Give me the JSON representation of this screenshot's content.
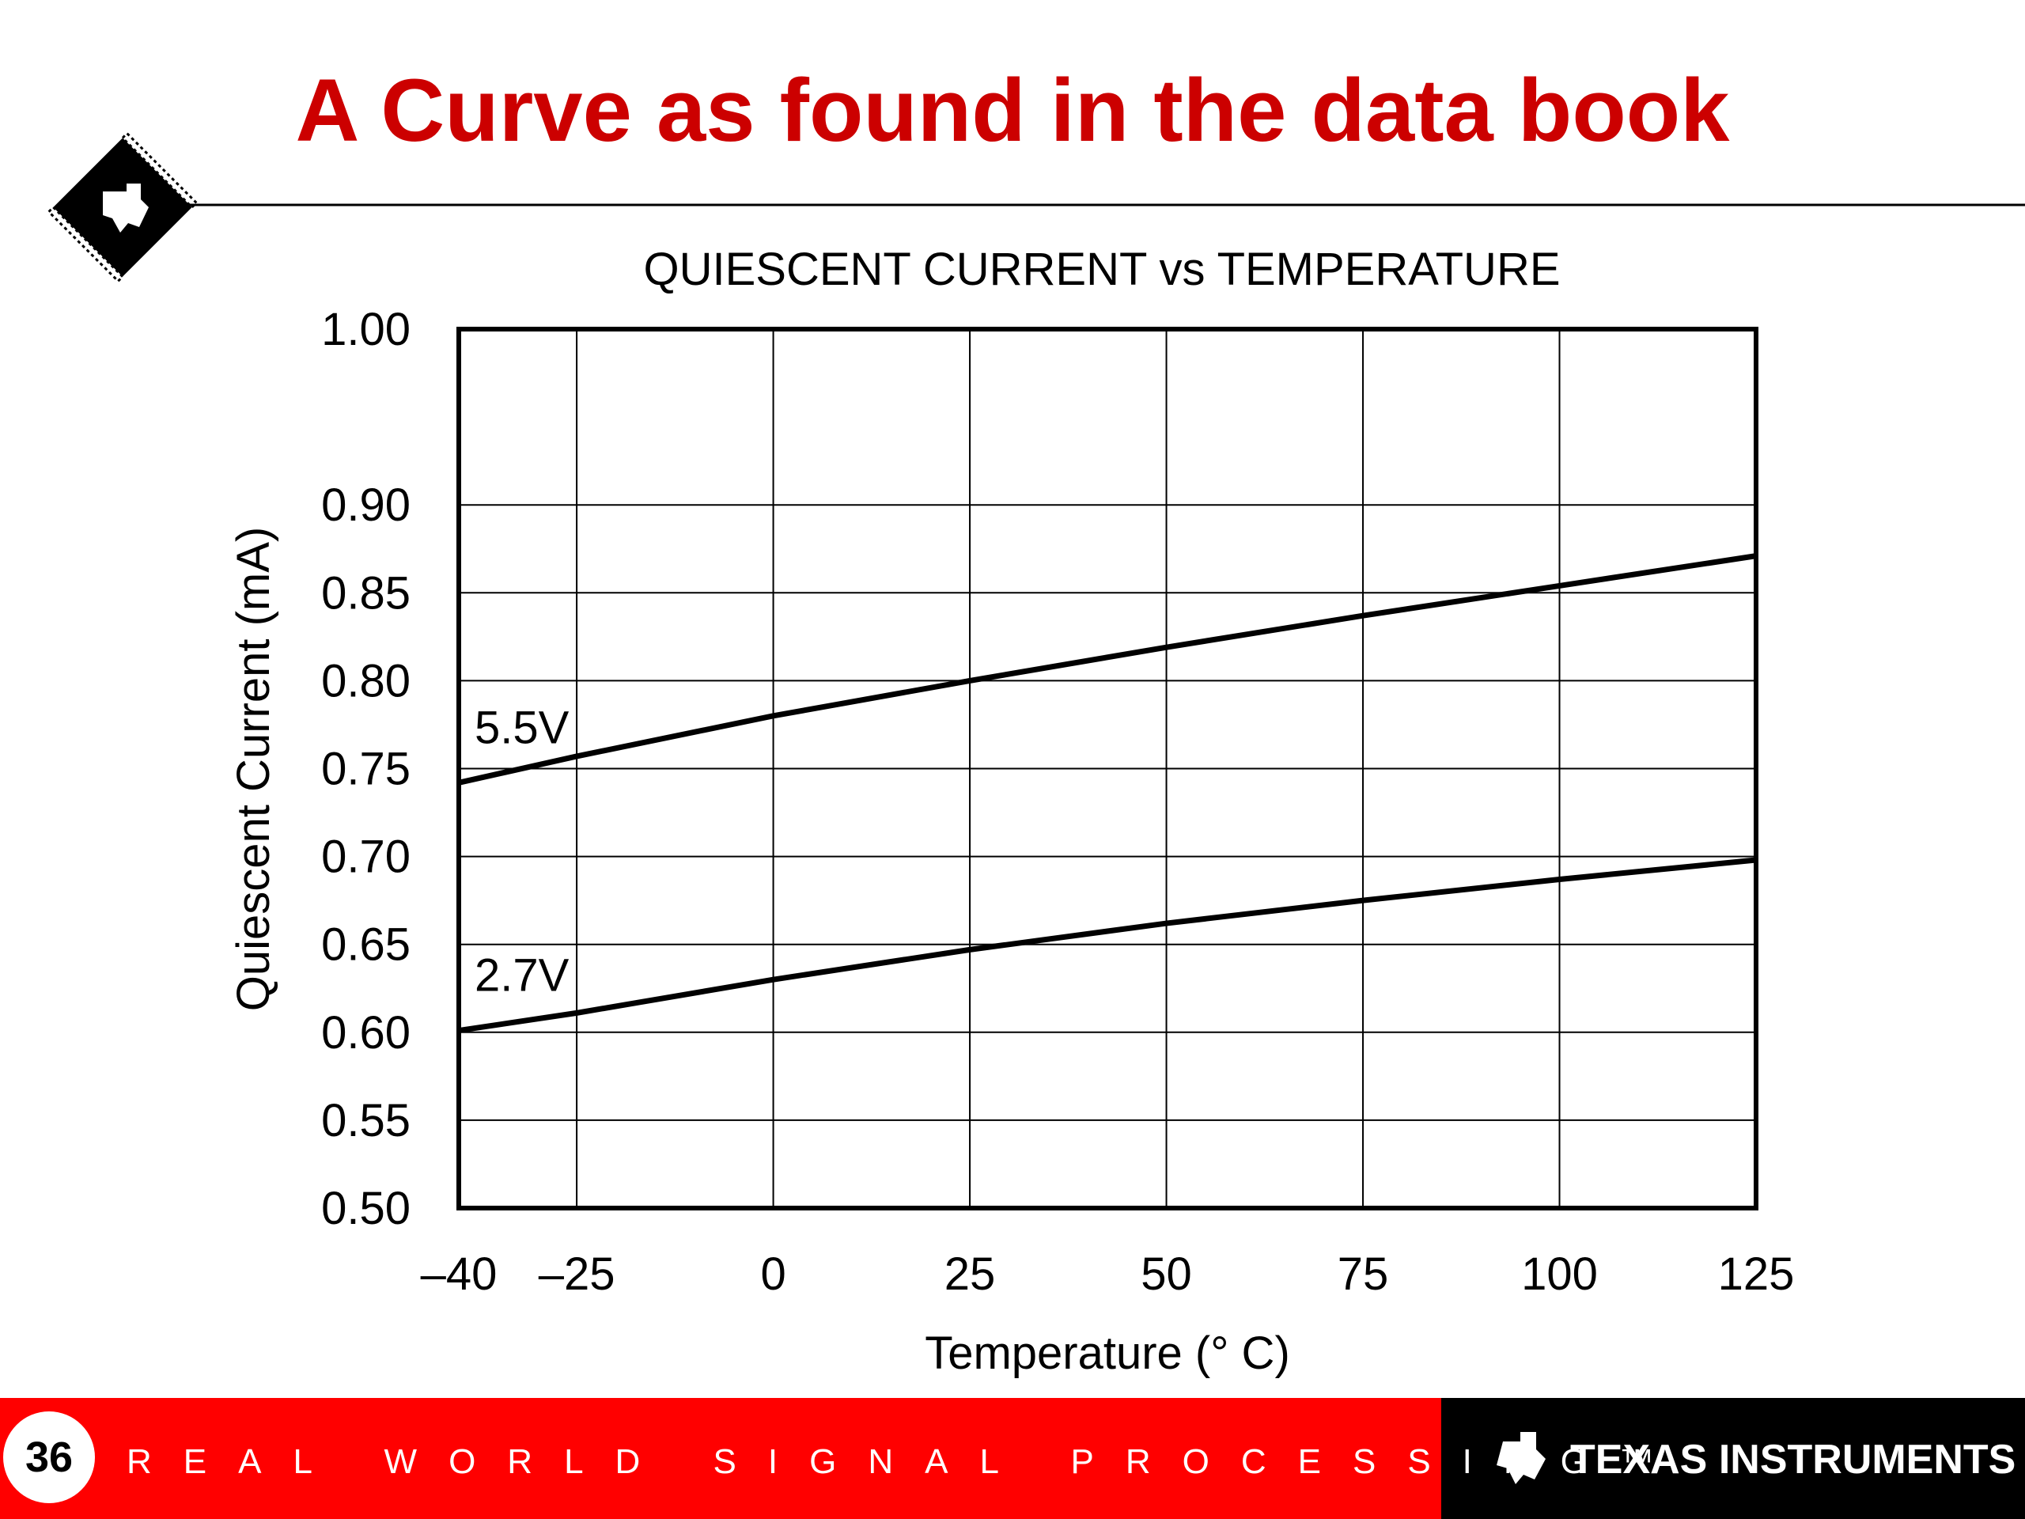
{
  "slide": {
    "title": "A Curve as found in the data book",
    "page_number": "36",
    "footer": "REAL WORLD SIGNAL PROCESSING™",
    "brand": "TEXAS INSTRUMENTS"
  },
  "chart_data": {
    "type": "line",
    "title": "QUIESCENT CURRENT vs TEMPERATURE",
    "x_label": "Temperature (° C)",
    "y_label": "Quiescent Current (mA)",
    "x": [
      -40,
      -25,
      0,
      25,
      50,
      75,
      100,
      125
    ],
    "series": [
      {
        "name": "5.5V",
        "color": "#000000",
        "values": [
          0.742,
          0.757,
          0.78,
          0.8,
          0.819,
          0.837,
          0.854,
          0.871
        ]
      },
      {
        "name": "2.7V",
        "color": "#000000",
        "values": [
          0.601,
          0.611,
          0.63,
          0.647,
          0.662,
          0.675,
          0.687,
          0.698
        ]
      }
    ],
    "xlim": [
      -40,
      125
    ],
    "xticks": [
      {
        "value": -40,
        "label": "–40"
      },
      {
        "value": -25,
        "label": "–25"
      },
      0,
      25,
      50,
      75,
      100,
      125
    ],
    "ylim": [
      0.5,
      1.0
    ],
    "yticks": [
      {
        "value": 0.5,
        "label": "0.50"
      },
      0.55,
      {
        "value": 0.6,
        "label": "0.60"
      },
      0.65,
      {
        "value": 0.7,
        "label": "0.70"
      },
      0.75,
      {
        "value": 0.8,
        "label": "0.80"
      },
      0.85,
      {
        "value": 0.9,
        "label": "0.90"
      },
      {
        "value": 1.0,
        "label": "1.00"
      }
    ],
    "grid": true
  }
}
